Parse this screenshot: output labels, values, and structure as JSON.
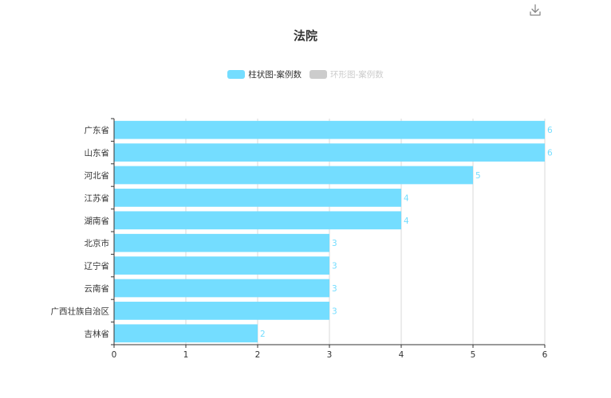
{
  "toolbar": {
    "download_icon": "download-icon"
  },
  "legend": [
    {
      "label": "柱状图-案例数",
      "color": "#74ddff",
      "active": true
    },
    {
      "label": "环形图-案例数",
      "color": "#cccccc",
      "active": false
    }
  ],
  "chart_data": {
    "type": "bar",
    "orientation": "horizontal",
    "title": "法院",
    "categories": [
      "广东省",
      "山东省",
      "河北省",
      "江苏省",
      "湖南省",
      "北京市",
      "辽宁省",
      "云南省",
      "广西壮族自治区",
      "吉林省"
    ],
    "series": [
      {
        "name": "柱状图-案例数",
        "values": [
          6,
          6,
          5,
          4,
          4,
          3,
          3,
          3,
          3,
          2
        ],
        "color": "#74ddff"
      }
    ],
    "xlim": [
      0,
      6
    ],
    "xticks": [
      0,
      1,
      2,
      3,
      4,
      5,
      6
    ],
    "grid": true,
    "data_labels": true,
    "legend_position": "top"
  }
}
